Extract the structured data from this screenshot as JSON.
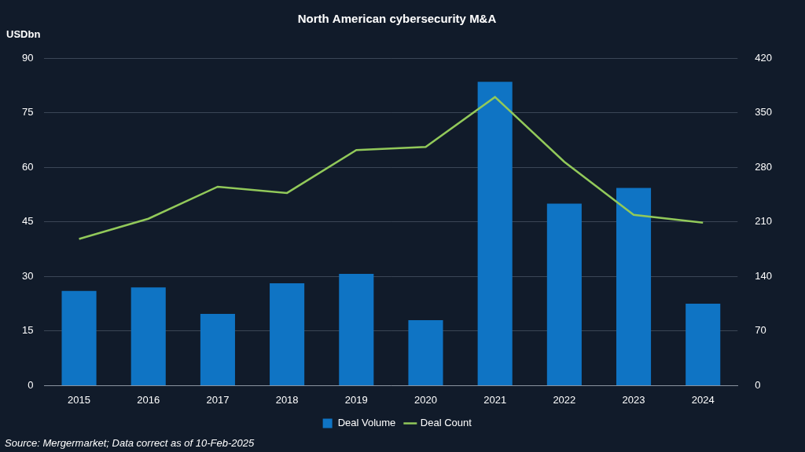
{
  "chart_data": {
    "type": "bar",
    "title": "North American cybersecurity M&A",
    "y_label": "USDbn",
    "source": "Source: Mergermarket; Data correct as of 10-Feb-2025",
    "categories": [
      "2015",
      "2016",
      "2017",
      "2018",
      "2019",
      "2020",
      "2021",
      "2022",
      "2023",
      "2024"
    ],
    "series": [
      {
        "name": "Deal Volume",
        "type": "bar",
        "color": "#0f74c4",
        "values": [
          26,
          27,
          19.7,
          28.1,
          30.7,
          18,
          83.5,
          50,
          54.3,
          22.5
        ]
      },
      {
        "name": "Deal Count",
        "type": "line",
        "color": "#92c95a",
        "axis": "y2",
        "values": [
          188,
          214,
          255,
          247,
          302,
          306,
          370,
          287,
          219,
          209
        ]
      }
    ],
    "ylim": [
      0,
      90
    ],
    "yticks": [
      0,
      15,
      30,
      45,
      60,
      75,
      90
    ],
    "y2lim": [
      0,
      420
    ],
    "y2ticks": [
      0,
      70,
      140,
      210,
      280,
      350,
      420
    ],
    "grid": true,
    "legend": "bottom"
  }
}
